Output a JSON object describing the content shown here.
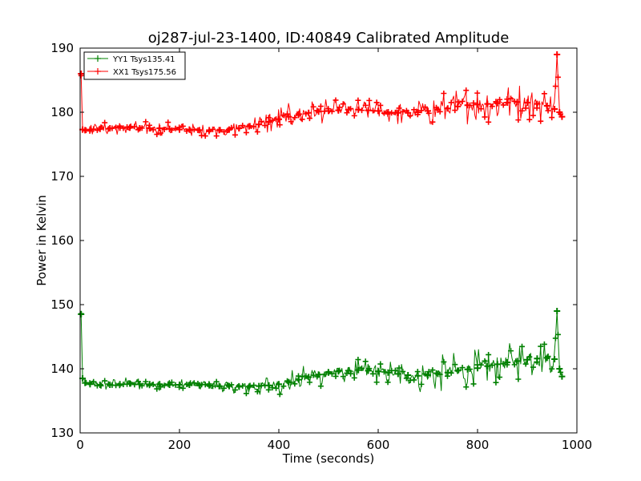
{
  "chart_data": {
    "type": "line",
    "title": "oj287-jul-23-1400, ID:40849 Calibrated Amplitude",
    "xlabel": "Time (seconds)",
    "ylabel": "Power in Kelvin",
    "xlim": [
      0,
      1000
    ],
    "ylim": [
      130,
      190
    ],
    "xticks": [
      0,
      200,
      400,
      600,
      800,
      1000
    ],
    "yticks": [
      130,
      140,
      150,
      160,
      170,
      180,
      190
    ],
    "grid": false,
    "legend_position": "top-left",
    "series": [
      {
        "name": "YY1 Tsys135.41",
        "color": "#008000",
        "marker": "+",
        "x": [
          2,
          5,
          10,
          20,
          40,
          60,
          80,
          100,
          120,
          140,
          160,
          180,
          200,
          220,
          240,
          260,
          280,
          300,
          320,
          340,
          360,
          380,
          400,
          420,
          440,
          460,
          480,
          500,
          520,
          540,
          560,
          580,
          600,
          620,
          640,
          660,
          680,
          700,
          720,
          740,
          760,
          780,
          800,
          820,
          840,
          860,
          880,
          900,
          920,
          940,
          955,
          960,
          965,
          970
        ],
        "y": [
          148.5,
          138.5,
          137.8,
          137.6,
          137.5,
          137.5,
          137.6,
          137.7,
          137.6,
          137.6,
          137.6,
          137.5,
          137.5,
          137.5,
          137.4,
          137.4,
          137.3,
          137.3,
          137.2,
          137.2,
          137.3,
          137.4,
          137.6,
          137.9,
          138.3,
          138.7,
          139.1,
          139.4,
          139.6,
          139.7,
          139.8,
          139.7,
          139.6,
          139.4,
          139.2,
          139.0,
          138.9,
          139.0,
          139.2,
          139.4,
          139.7,
          139.9,
          140.1,
          140.4,
          140.7,
          141.0,
          141.2,
          141.4,
          141.6,
          141.7,
          141.5,
          149.0,
          140.0,
          138.8
        ],
        "spread": [
          0.3,
          0.3,
          0.6,
          0.8,
          0.9,
          0.9,
          1.0,
          1.0,
          1.0,
          1.0,
          1.0,
          1.0,
          0.9,
          0.9,
          0.9,
          0.9,
          0.9,
          1.0,
          1.2,
          1.5,
          1.7,
          1.9,
          2.0,
          2.0,
          2.0,
          2.0,
          2.0,
          2.0,
          1.9,
          1.8,
          1.8,
          1.8,
          1.8,
          2.0,
          2.3,
          2.5,
          2.7,
          2.8,
          2.9,
          3.0,
          3.0,
          3.0,
          3.0,
          3.0,
          3.0,
          3.0,
          3.0,
          3.0,
          2.8,
          2.5,
          2.0,
          0.3,
          0.5,
          0.3
        ]
      },
      {
        "name": "XX1 Tsys175.56",
        "color": "#ff0000",
        "marker": "+",
        "x": [
          2,
          5,
          10,
          20,
          40,
          60,
          80,
          100,
          120,
          140,
          160,
          180,
          200,
          220,
          240,
          260,
          280,
          300,
          320,
          340,
          360,
          380,
          400,
          420,
          440,
          460,
          480,
          500,
          520,
          540,
          560,
          580,
          600,
          620,
          640,
          660,
          680,
          700,
          720,
          740,
          760,
          780,
          800,
          820,
          840,
          860,
          880,
          900,
          920,
          940,
          955,
          960,
          965,
          970
        ],
        "y": [
          186.0,
          177.3,
          177.2,
          177.3,
          177.4,
          177.5,
          177.6,
          177.6,
          177.5,
          177.5,
          177.5,
          177.4,
          177.3,
          177.3,
          177.2,
          177.2,
          177.2,
          177.3,
          177.5,
          177.8,
          178.1,
          178.5,
          178.9,
          179.3,
          179.7,
          179.9,
          180.1,
          180.2,
          180.3,
          180.4,
          180.4,
          180.3,
          180.2,
          180.0,
          179.9,
          179.9,
          180.0,
          180.2,
          180.4,
          180.6,
          180.9,
          181.1,
          181.2,
          181.3,
          181.4,
          181.5,
          181.6,
          181.5,
          181.3,
          181.0,
          180.5,
          189.0,
          180.0,
          179.3
        ],
        "spread": [
          0.3,
          0.3,
          0.6,
          0.8,
          1.0,
          1.0,
          1.1,
          1.1,
          1.1,
          1.1,
          1.1,
          1.1,
          1.0,
          1.0,
          0.9,
          0.9,
          0.9,
          1.0,
          1.2,
          1.5,
          1.8,
          2.0,
          2.1,
          2.1,
          2.0,
          1.9,
          1.9,
          1.8,
          1.7,
          1.6,
          1.6,
          1.6,
          1.6,
          1.7,
          1.9,
          2.0,
          2.2,
          2.4,
          2.6,
          2.8,
          3.0,
          3.0,
          3.0,
          3.0,
          3.0,
          3.0,
          3.0,
          3.0,
          2.8,
          2.6,
          2.2,
          0.3,
          0.5,
          0.3
        ]
      }
    ]
  }
}
